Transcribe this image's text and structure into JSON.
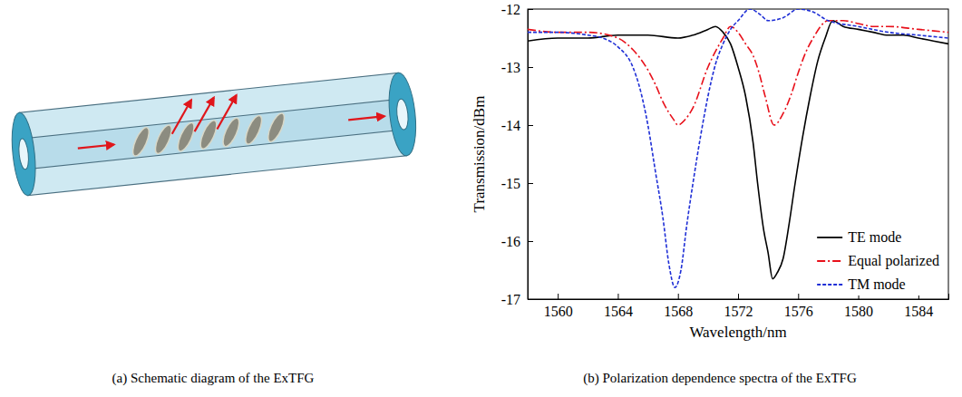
{
  "diagram": {
    "caption": "(a) Schematic diagram of the ExTFG"
  },
  "chart_data": {
    "type": "line",
    "title": "(b) Polarization dependence spectra of the ExTFG",
    "x_label": "Wavelength/nm",
    "y_label": "Transmission/dBm",
    "xlim": [
      1558,
      1586
    ],
    "xticks": [
      1560,
      1564,
      1568,
      1572,
      1576,
      1580,
      1584
    ],
    "ylim": [
      -17,
      -12
    ],
    "yticks": [
      -17,
      -16,
      -15,
      -14,
      -13,
      -12
    ],
    "grid": false,
    "legend": "lower right",
    "series": [
      {
        "name": "TE mode",
        "color": "#000000",
        "line_style": "solid",
        "x": [
          1558,
          1560,
          1562,
          1564,
          1566,
          1568,
          1569,
          1570,
          1570.5,
          1571,
          1571.5,
          1572,
          1572.5,
          1573,
          1573.3,
          1573.7,
          1574,
          1574.3,
          1574.6,
          1575,
          1575.4,
          1575.8,
          1576.3,
          1576.8,
          1577.3,
          1577.8,
          1578.3,
          1579,
          1580,
          1581,
          1582,
          1583,
          1584,
          1585,
          1586
        ],
        "values": [
          -12.55,
          -12.5,
          -12.5,
          -12.45,
          -12.45,
          -12.5,
          -12.45,
          -12.35,
          -12.3,
          -12.4,
          -12.6,
          -13.0,
          -13.5,
          -14.3,
          -15.0,
          -15.8,
          -16.2,
          -16.65,
          -16.55,
          -16.3,
          -15.7,
          -15.0,
          -14.2,
          -13.5,
          -12.9,
          -12.5,
          -12.2,
          -12.3,
          -12.35,
          -12.4,
          -12.45,
          -12.45,
          -12.5,
          -12.55,
          -12.6
        ]
      },
      {
        "name": "Equal polarized",
        "color": "#e8101a",
        "line_style": "dashdot",
        "x": [
          1558,
          1560,
          1562,
          1564,
          1565,
          1566,
          1566.5,
          1567,
          1567.7,
          1568,
          1568.5,
          1569,
          1570,
          1571,
          1571.5,
          1572,
          1572.5,
          1573,
          1573.4,
          1573.8,
          1574.4,
          1575,
          1575.5,
          1576,
          1576.5,
          1577,
          1578,
          1579,
          1580,
          1581,
          1582,
          1584,
          1586
        ],
        "values": [
          -12.35,
          -12.4,
          -12.4,
          -12.5,
          -12.7,
          -13.05,
          -13.3,
          -13.6,
          -13.9,
          -14.0,
          -13.9,
          -13.7,
          -13.0,
          -12.5,
          -12.3,
          -12.4,
          -12.6,
          -12.8,
          -13.1,
          -13.5,
          -14.0,
          -13.8,
          -13.5,
          -13.1,
          -12.75,
          -12.5,
          -12.2,
          -12.2,
          -12.25,
          -12.3,
          -12.3,
          -12.35,
          -12.4
        ]
      },
      {
        "name": "TM mode",
        "color": "#1f2fd6",
        "line_style": "dotted",
        "x": [
          1558,
          1560,
          1562,
          1563,
          1564,
          1565,
          1565.5,
          1566,
          1566.5,
          1567,
          1567.4,
          1567.8,
          1568.2,
          1568.6,
          1569,
          1569.5,
          1570,
          1570.5,
          1571,
          1571.5,
          1572,
          1572.8,
          1573.5,
          1574,
          1575,
          1576,
          1577,
          1578,
          1580,
          1582,
          1584,
          1586
        ],
        "values": [
          -12.4,
          -12.4,
          -12.45,
          -12.5,
          -12.65,
          -13.0,
          -13.4,
          -14.0,
          -14.8,
          -15.6,
          -16.4,
          -16.8,
          -16.5,
          -15.7,
          -15.0,
          -14.2,
          -13.5,
          -12.95,
          -12.6,
          -12.35,
          -12.2,
          -12.0,
          -12.1,
          -12.2,
          -12.15,
          -12.0,
          -12.05,
          -12.2,
          -12.3,
          -12.4,
          -12.45,
          -12.5
        ]
      }
    ]
  }
}
